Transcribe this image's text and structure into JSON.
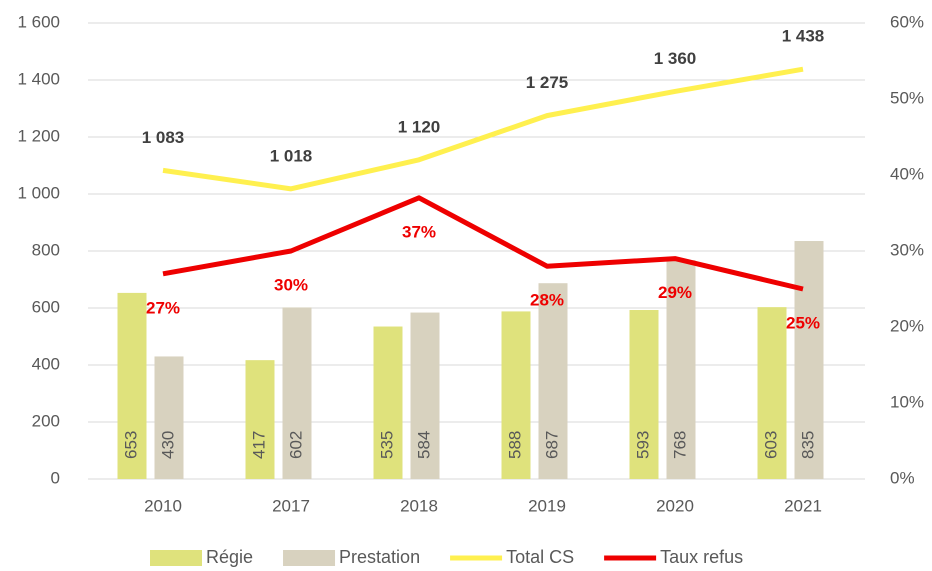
{
  "chart_data": {
    "type": "bar",
    "categories": [
      "2010",
      "2017",
      "2018",
      "2019",
      "2020",
      "2021"
    ],
    "series": [
      {
        "name": "Régie",
        "type": "bar",
        "color": "#dfe27c",
        "values": [
          653,
          417,
          535,
          588,
          593,
          603
        ]
      },
      {
        "name": "Prestation",
        "type": "bar",
        "color": "#d8d2bf",
        "values": [
          430,
          602,
          584,
          687,
          768,
          835
        ]
      },
      {
        "name": "Total CS",
        "type": "line",
        "color": "#fff04f",
        "values": [
          1083,
          1018,
          1120,
          1275,
          1360,
          1438
        ],
        "value_labels": [
          "1 083",
          "1 018",
          "1 120",
          "1 275",
          "1 360",
          "1 438"
        ]
      },
      {
        "name": "Taux refus",
        "type": "line",
        "axis": "y2",
        "color": "#ee0000",
        "values": [
          27,
          30,
          37,
          28,
          29,
          25
        ],
        "value_labels": [
          "27%",
          "30%",
          "37%",
          "28%",
          "29%",
          "25%"
        ]
      }
    ],
    "ylim": [
      0,
      1600
    ],
    "yticks": [
      0,
      200,
      400,
      600,
      800,
      {
        "value": 1000,
        "label": "1 000"
      },
      {
        "value": 1200,
        "label": "1 200"
      },
      {
        "value": 1400,
        "label": "1 400"
      },
      {
        "value": 1600,
        "label": "1 600"
      }
    ],
    "y2lim": [
      0,
      60
    ],
    "y2ticks": [
      {
        "value": 0,
        "label": "0%"
      },
      {
        "value": 10,
        "label": "10%"
      },
      {
        "value": 20,
        "label": "20%"
      },
      {
        "value": 30,
        "label": "30%"
      },
      {
        "value": 40,
        "label": "40%"
      },
      {
        "value": 50,
        "label": "50%"
      },
      {
        "value": 60,
        "label": "60%"
      }
    ],
    "grid": true,
    "legend": "bottom"
  }
}
